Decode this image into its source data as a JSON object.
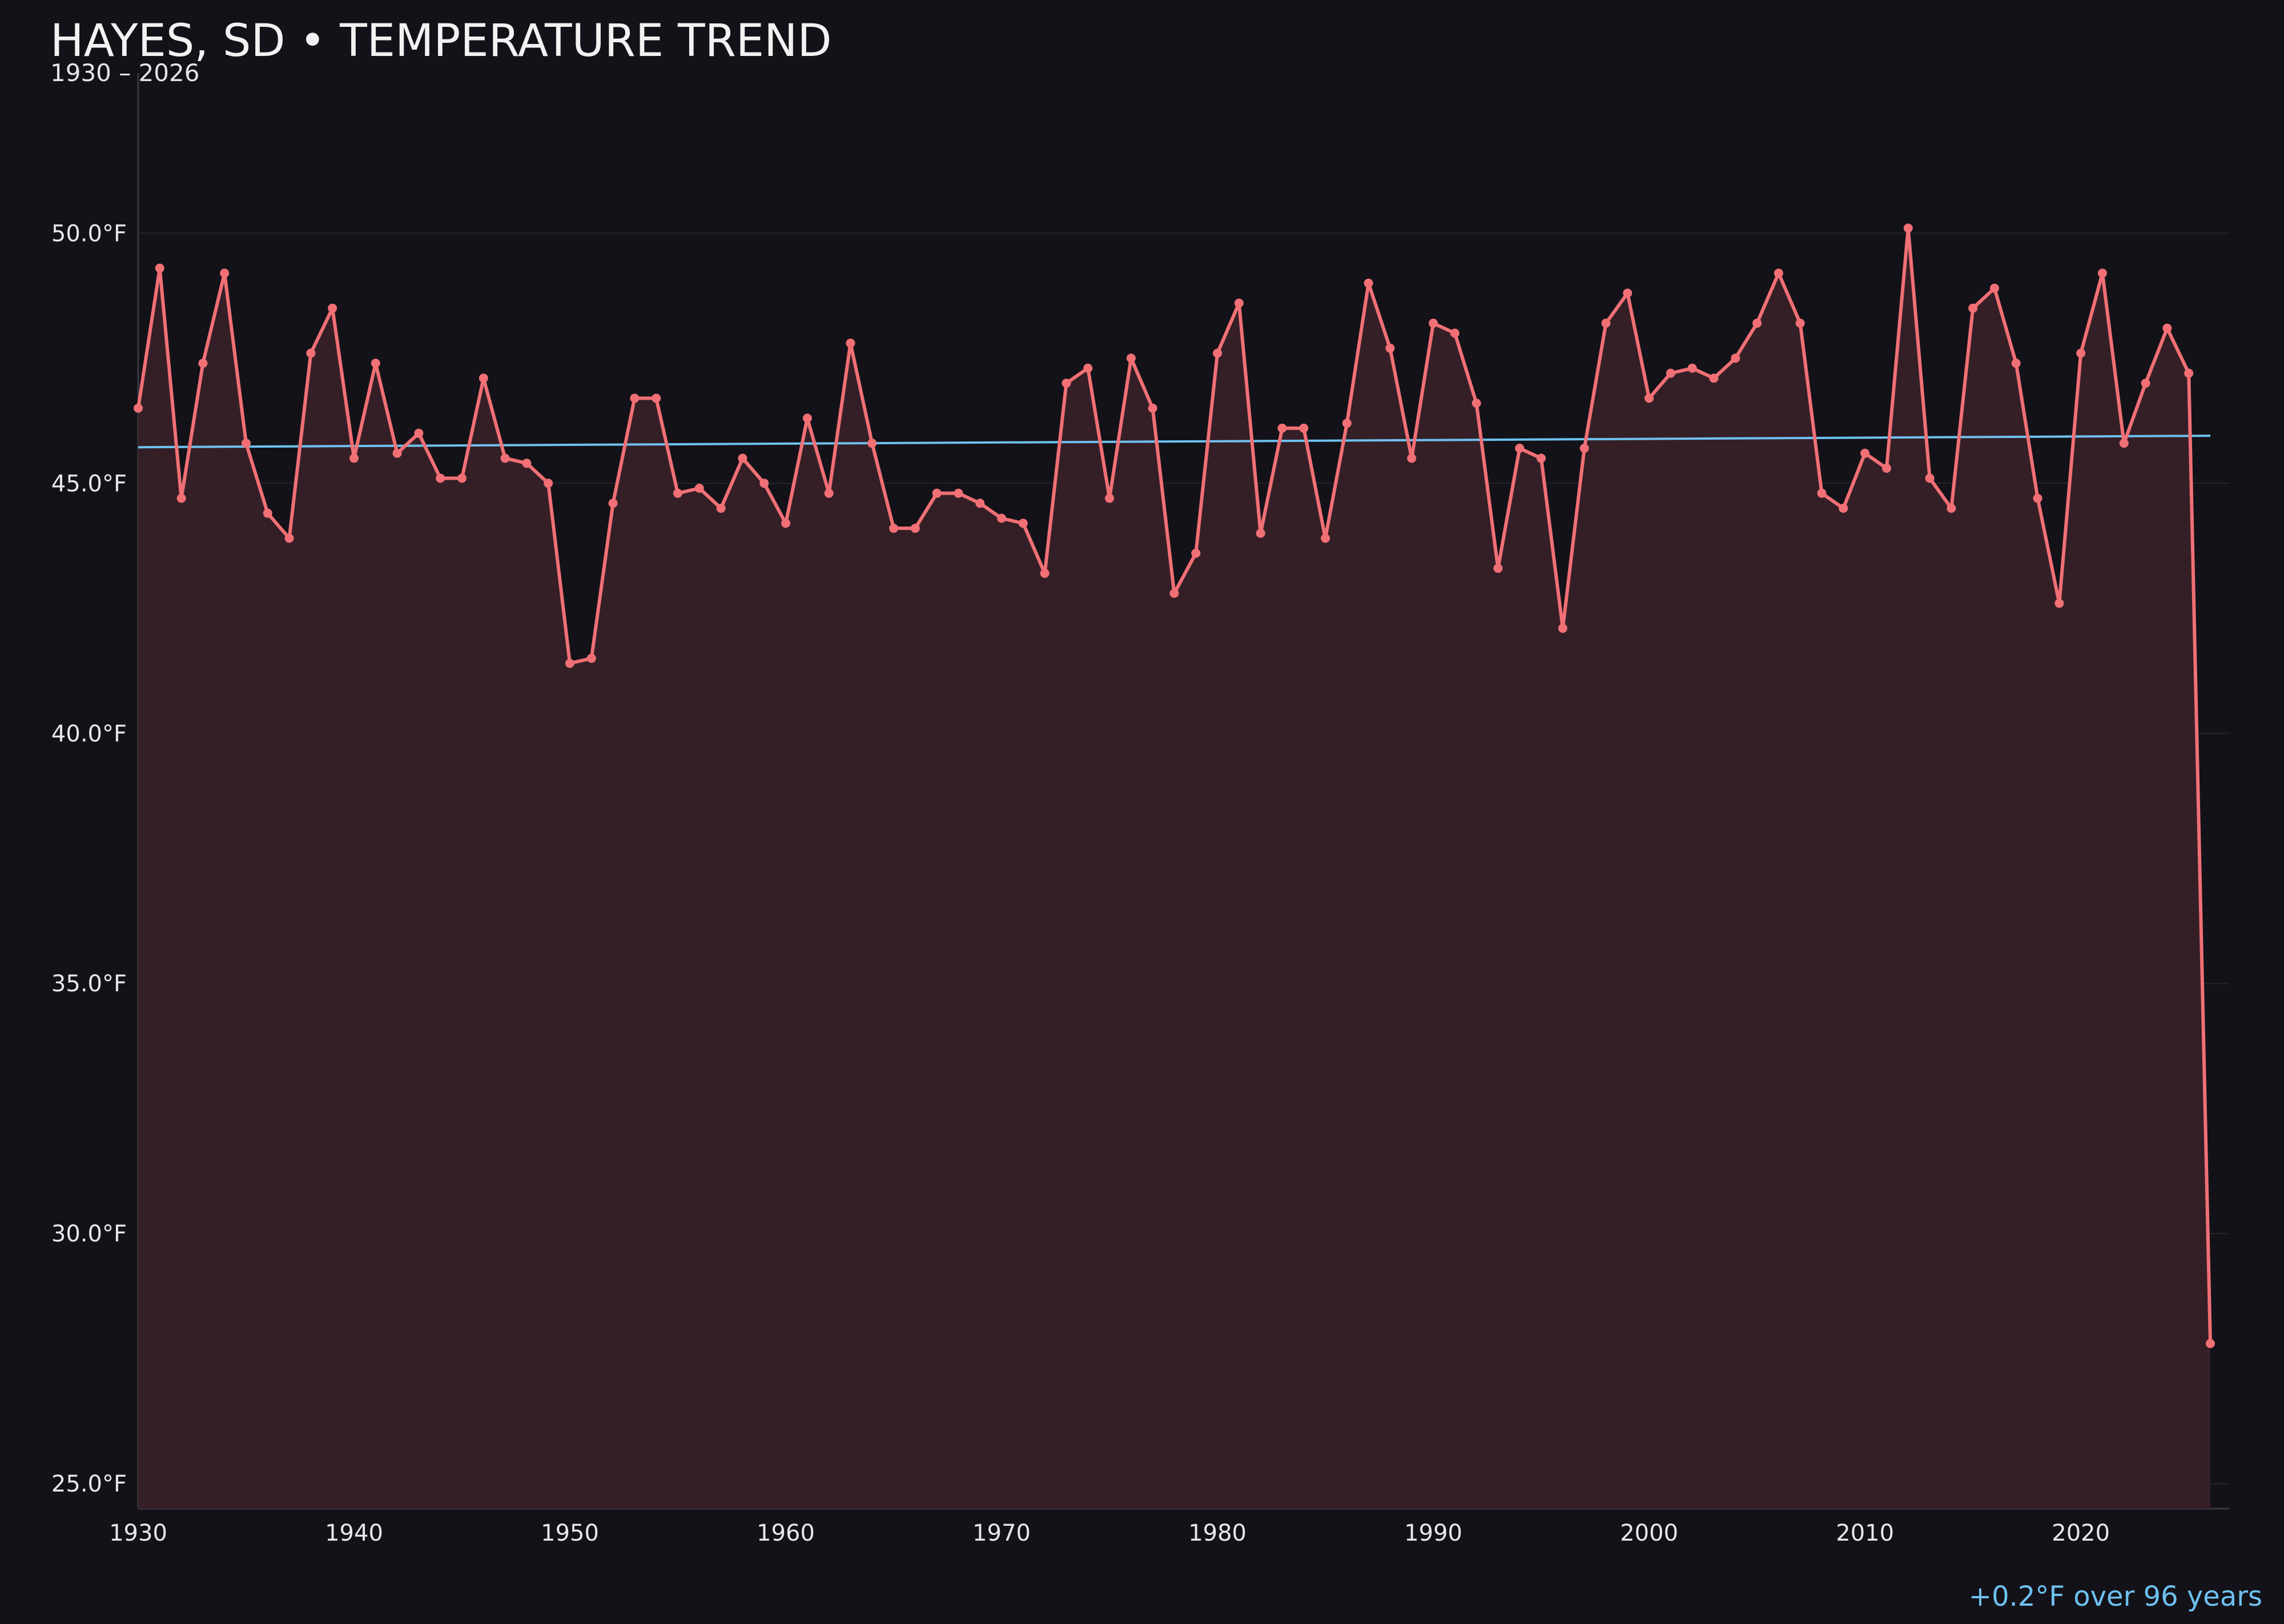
{
  "chart_data": {
    "type": "line",
    "title": "HAYES, SD • TEMPERATURE TREND",
    "subtitle": "1930 – 2026",
    "xlabel": "",
    "ylabel": "",
    "xlim": [
      1930,
      2026.9
    ],
    "ylim": [
      24.5,
      53.2
    ],
    "x_ticks": [
      1930,
      1940,
      1950,
      1960,
      1970,
      1980,
      1990,
      2000,
      2010,
      2020
    ],
    "y_ticks": [
      25,
      30,
      35,
      40,
      45,
      50
    ],
    "y_tick_labels": [
      "25.0°F",
      "30.0°F",
      "35.0°F",
      "40.0°F",
      "45.0°F",
      "50.0°F"
    ],
    "grid": true,
    "series": [
      {
        "color": "#f07075",
        "fill": "#351f26",
        "x": [
          1930,
          1931,
          1932,
          1933,
          1934,
          1935,
          1936,
          1937,
          1938,
          1939,
          1940,
          1941,
          1942,
          1943,
          1944,
          1945,
          1946,
          1947,
          1948,
          1949,
          1950,
          1951,
          1952,
          1953,
          1954,
          1955,
          1956,
          1957,
          1958,
          1959,
          1960,
          1961,
          1962,
          1963,
          1964,
          1965,
          1966,
          1967,
          1968,
          1969,
          1970,
          1971,
          1972,
          1973,
          1974,
          1975,
          1976,
          1977,
          1978,
          1979,
          1980,
          1981,
          1982,
          1983,
          1984,
          1985,
          1986,
          1987,
          1988,
          1989,
          1990,
          1991,
          1992,
          1993,
          1994,
          1995,
          1996,
          1997,
          1998,
          1999,
          2000,
          2001,
          2002,
          2003,
          2004,
          2005,
          2006,
          2007,
          2008,
          2009,
          2010,
          2011,
          2012,
          2013,
          2014,
          2015,
          2016,
          2017,
          2018,
          2019,
          2020,
          2021,
          2022,
          2023,
          2024,
          2025,
          2026
        ],
        "values": [
          46.5,
          49.3,
          44.7,
          47.4,
          49.2,
          45.8,
          44.4,
          43.9,
          47.6,
          48.5,
          45.5,
          47.4,
          45.6,
          46.0,
          45.1,
          45.1,
          47.1,
          45.5,
          45.4,
          45.0,
          41.4,
          41.5,
          44.6,
          46.7,
          46.7,
          44.8,
          44.9,
          44.5,
          45.5,
          45.0,
          44.2,
          46.3,
          44.8,
          47.8,
          45.8,
          44.1,
          44.1,
          44.8,
          44.8,
          44.6,
          44.3,
          44.2,
          43.2,
          47.0,
          47.3,
          44.7,
          47.5,
          46.5,
          42.8,
          43.6,
          47.6,
          48.6,
          44.0,
          46.1,
          46.1,
          43.9,
          46.2,
          49.0,
          47.7,
          45.5,
          48.2,
          48.0,
          46.6,
          43.3,
          45.7,
          45.5,
          42.1,
          45.7,
          48.2,
          48.8,
          46.7,
          47.2,
          47.3,
          47.1,
          47.5,
          48.2,
          49.2,
          48.2,
          44.8,
          44.5,
          45.6,
          45.3,
          50.1,
          45.1,
          44.5,
          48.5,
          48.9,
          47.4,
          44.7,
          42.6,
          47.6,
          49.2,
          45.8,
          47.0,
          48.1,
          47.2,
          27.8
        ]
      }
    ],
    "trend": {
      "color": "#6ec1f0",
      "x": [
        1930,
        2026
      ],
      "values": [
        45.72,
        45.95
      ],
      "label": "+0.2°F over 96 years"
    }
  }
}
